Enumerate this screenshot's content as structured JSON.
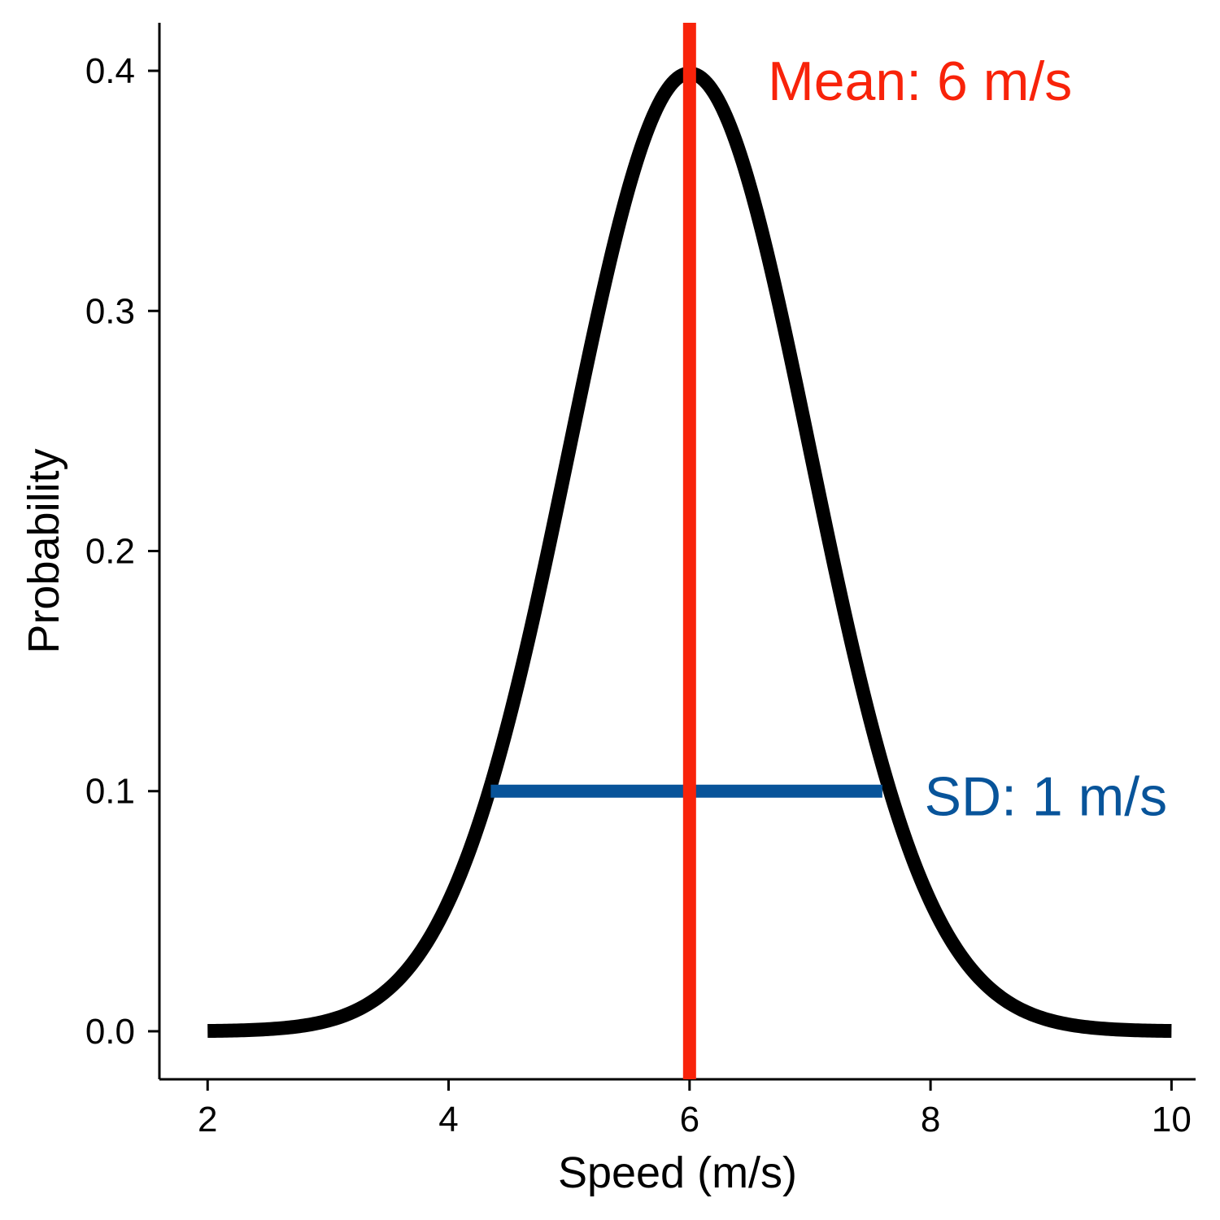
{
  "chart_data": {
    "type": "line",
    "title": "",
    "xlabel": "Speed (m/s)",
    "ylabel": "Probability",
    "xlim": [
      1.6,
      10.2
    ],
    "ylim": [
      -0.02,
      0.42
    ],
    "x_ticks": [
      2,
      4,
      6,
      8,
      10
    ],
    "x_tick_labels": [
      "2",
      "4",
      "6",
      "8",
      "10"
    ],
    "y_ticks": [
      0.0,
      0.1,
      0.2,
      0.3,
      0.4
    ],
    "y_tick_labels": [
      "0.0",
      "0.1",
      "0.2",
      "0.3",
      "0.4"
    ],
    "grid": false,
    "series": [
      {
        "distribution": "normal",
        "mean": 6,
        "sd": 1,
        "x_range": [
          2,
          10
        ],
        "color": "#000000"
      }
    ],
    "mean_line": {
      "x": 6,
      "color": "#f8230a",
      "label": "Mean: 6 m/s"
    },
    "sd_segment": {
      "x_start": 4.35,
      "x_end": 7.6,
      "y": 0.1,
      "color": "#08549a",
      "label": "SD: 1 m/s"
    },
    "annotations": [
      {
        "text": "Mean: 6 m/s",
        "x": 6.65,
        "y": 0.396,
        "color": "#f8230a"
      },
      {
        "text": "SD: 1 m/s",
        "x": 7.95,
        "y": 0.098,
        "color": "#08549a"
      }
    ]
  }
}
